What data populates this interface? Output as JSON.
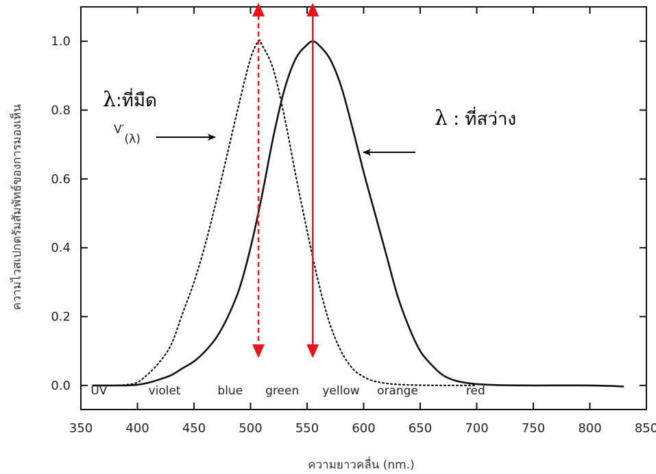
{
  "chart_data": {
    "type": "line",
    "title": "",
    "xlabel": "ความยาวคลื่น (nm.)",
    "ylabel": "ความไวสเปกตรัมสัมพัทธ์ของการมองเห็น",
    "xlim": [
      350,
      850
    ],
    "ylim": [
      -0.07,
      1.1
    ],
    "x_ticks": [
      "350",
      "400",
      "450",
      "500",
      "550",
      "600",
      "650",
      "700",
      "750",
      "800",
      "850"
    ],
    "y_ticks": [
      "0.0",
      "0.2",
      "0.4",
      "0.6",
      "0.8",
      "1.0"
    ],
    "grid": false,
    "series": [
      {
        "style": "dotted",
        "x": [
          380,
          390,
          400,
          410,
          420,
          430,
          440,
          450,
          460,
          470,
          480,
          490,
          500,
          507,
          510,
          520,
          530,
          540,
          550,
          560,
          570,
          580,
          590,
          600,
          610,
          620,
          630,
          640,
          650,
          660,
          670,
          680,
          690,
          700
        ],
        "y": [
          0.0,
          0.002,
          0.009,
          0.035,
          0.07,
          0.12,
          0.21,
          0.3,
          0.41,
          0.54,
          0.68,
          0.82,
          0.95,
          1.0,
          0.99,
          0.92,
          0.78,
          0.61,
          0.45,
          0.3,
          0.18,
          0.1,
          0.05,
          0.025,
          0.012,
          0.006,
          0.003,
          0.0015,
          0.0008,
          0.0004,
          0.0002,
          0.0001,
          0.0,
          0.0
        ]
      },
      {
        "style": "solid",
        "x": [
          360,
          380,
          390,
          400,
          410,
          420,
          430,
          440,
          450,
          460,
          470,
          480,
          490,
          500,
          510,
          520,
          530,
          540,
          550,
          555,
          560,
          570,
          580,
          590,
          600,
          610,
          620,
          630,
          640,
          650,
          660,
          670,
          680,
          690,
          700,
          720,
          750,
          800,
          830
        ],
        "y": [
          0.0,
          0.0,
          0.0,
          0.002,
          0.008,
          0.018,
          0.03,
          0.05,
          0.07,
          0.1,
          0.14,
          0.2,
          0.28,
          0.4,
          0.55,
          0.72,
          0.86,
          0.95,
          0.99,
          1.0,
          0.99,
          0.95,
          0.87,
          0.75,
          0.62,
          0.5,
          0.38,
          0.26,
          0.17,
          0.1,
          0.06,
          0.03,
          0.015,
          0.008,
          0.004,
          0.001,
          0.0,
          0.0,
          -0.003
        ]
      }
    ],
    "markers": [
      {
        "x": 507,
        "style": "dashed",
        "color": "#e8141b"
      },
      {
        "x": 555,
        "style": "solid",
        "color": "#e8141b"
      }
    ],
    "band_labels": [
      {
        "text": "UV",
        "x": 366
      },
      {
        "text": "violet",
        "x": 424
      },
      {
        "text": "blue",
        "x": 482
      },
      {
        "text": "green",
        "x": 528
      },
      {
        "text": "yellow",
        "x": 580
      },
      {
        "text": "orange",
        "x": 630
      },
      {
        "text": "red",
        "x": 699
      }
    ],
    "annotations": {
      "scotopic_lambda": "λ",
      "scotopic_label": ":ที่มืด",
      "photopic_lambda": "λ",
      "photopic_label": " : ที่สว่าง",
      "v_label": "V′",
      "v_sub": "(λ)"
    }
  }
}
